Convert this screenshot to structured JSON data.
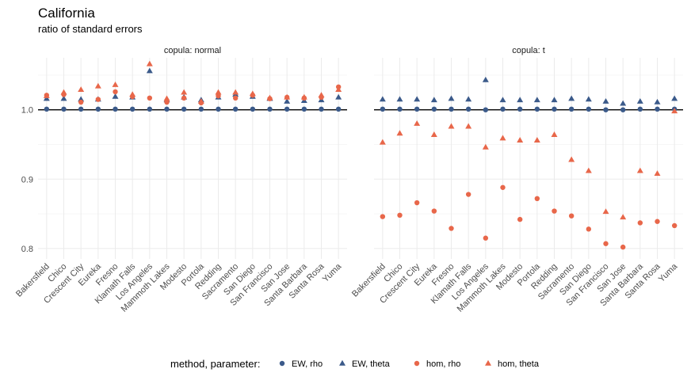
{
  "title": "California",
  "subtitle": "ratio of standard errors",
  "legend": {
    "title": "method, parameter:",
    "items": [
      {
        "label": "EW, rho",
        "color": "#3b5a8a",
        "shape": "circle"
      },
      {
        "label": "EW, theta",
        "color": "#3b5a8a",
        "shape": "triangle"
      },
      {
        "label": "hom, rho",
        "color": "#e8674a",
        "shape": "circle"
      },
      {
        "label": "hom, theta",
        "color": "#e8674a",
        "shape": "triangle"
      }
    ]
  },
  "chart_data": [
    {
      "type": "scatter",
      "panel": "copula: normal",
      "categories": [
        "Bakersfield",
        "Chico",
        "Crescent City",
        "Eureka",
        "Fresno",
        "Klamath Falls",
        "Los Angeles",
        "Mammoth Lakes",
        "Modesto",
        "Portola",
        "Redding",
        "Sacramento",
        "San Diego",
        "San Francisco",
        "San Jose",
        "Santa Barbara",
        "Santa Rosa",
        "Yuma"
      ],
      "ylim": [
        0.785,
        1.075
      ],
      "yticks": [
        "0.8",
        "0.9",
        "1.0"
      ],
      "reference_line": 1.0,
      "series": [
        {
          "name": "EW, rho",
          "values": [
            1.001,
            1.001,
            1.001,
            1.001,
            1.001,
            1.001,
            1.001,
            1.001,
            1.001,
            1.001,
            1.001,
            1.001,
            1.001,
            1.001,
            1.001,
            1.001,
            1.001,
            1.001
          ]
        },
        {
          "name": "EW, theta",
          "values": [
            1.016,
            1.016,
            1.015,
            1.015,
            1.019,
            1.018,
            1.056,
            1.014,
            1.018,
            1.014,
            1.018,
            1.022,
            1.019,
            1.016,
            1.012,
            1.013,
            1.014,
            1.018
          ]
        },
        {
          "name": "hom, rho",
          "values": [
            1.021,
            1.022,
            1.011,
            1.015,
            1.026,
            1.019,
            1.017,
            1.011,
            1.017,
            1.01,
            1.02,
            1.017,
            1.021,
            1.016,
            1.018,
            1.017,
            1.018,
            1.033
          ]
        },
        {
          "name": "hom, theta",
          "values": [
            1.02,
            1.025,
            1.029,
            1.034,
            1.036,
            1.022,
            1.066,
            1.016,
            1.025,
            1.012,
            1.025,
            1.025,
            1.023,
            1.017,
            1.018,
            1.018,
            1.021,
            1.029
          ]
        }
      ]
    },
    {
      "type": "scatter",
      "panel": "copula: t",
      "categories": [
        "Bakersfield",
        "Chico",
        "Crescent City",
        "Eureka",
        "Fresno",
        "Klamath Falls",
        "Los Angeles",
        "Mammoth Lakes",
        "Modesto",
        "Portola",
        "Redding",
        "Sacramento",
        "San Diego",
        "San Francisco",
        "San Jose",
        "Santa Barbara",
        "Santa Rosa",
        "Yuma"
      ],
      "ylim": [
        0.785,
        1.075
      ],
      "yticks": [
        "0.8",
        "0.9",
        "1.0"
      ],
      "reference_line": 1.0,
      "series": [
        {
          "name": "EW, rho",
          "values": [
            1.001,
            1.001,
            1.001,
            1.001,
            1.001,
            1.001,
            1.0,
            1.001,
            1.001,
            1.001,
            1.001,
            1.001,
            1.001,
            1.0,
            1.0,
            1.001,
            1.001,
            1.001
          ]
        },
        {
          "name": "EW, theta",
          "values": [
            1.015,
            1.015,
            1.015,
            1.014,
            1.016,
            1.015,
            1.043,
            1.014,
            1.014,
            1.014,
            1.014,
            1.016,
            1.015,
            1.012,
            1.009,
            1.012,
            1.011,
            1.016
          ]
        },
        {
          "name": "hom, rho",
          "values": [
            0.846,
            0.848,
            0.866,
            0.854,
            0.829,
            0.878,
            0.815,
            0.888,
            0.842,
            0.872,
            0.854,
            0.847,
            0.828,
            0.807,
            0.802,
            0.837,
            0.839,
            0.833
          ]
        },
        {
          "name": "hom, theta",
          "values": [
            0.953,
            0.966,
            0.98,
            0.964,
            0.976,
            0.976,
            0.946,
            0.959,
            0.956,
            0.956,
            0.964,
            0.928,
            0.912,
            0.853,
            0.845,
            0.912,
            0.908,
            0.998
          ]
        }
      ]
    }
  ]
}
